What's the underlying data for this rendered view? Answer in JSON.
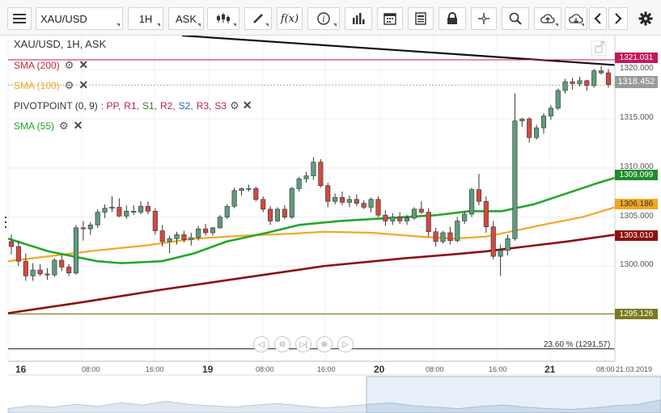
{
  "toolbar": {
    "symbol": "XAU/USD",
    "interval": "1H",
    "price_type": "ASK"
  },
  "legend": {
    "symbol_line": "XAU/USD, 1H, ASK",
    "sma200": "SMA (200)",
    "sma100": "SMA (100)",
    "pivot_label": "PIVOTPOINT (0, 9)",
    "pivot_items": [
      ": PP,",
      "R1,",
      "S1,",
      "R2,",
      "S2,",
      "R3,",
      "S3"
    ],
    "sma55": "SMA (55)"
  },
  "colors": {
    "up": "#5d9c7d",
    "down": "#d2493f",
    "sma200": "#8b1010",
    "sma100": "#f5a623",
    "sma55": "#22a72a",
    "pivot_line": "#7a7a1e",
    "pink": "#c2185b",
    "badge_green": "#1e8c2a",
    "badge_orange": "#f5a623",
    "badge_darkred": "#8b1010",
    "badge_olive": "#7a7a1e",
    "badge_price": "#9a9a9a"
  },
  "badges": {
    "pink": "1321.031",
    "last": "1318.452",
    "sma55": "1309.099",
    "sma100": "1306.186",
    "sma200": "1303.010",
    "pivot": "1295.126"
  },
  "fib_label": "23.60 % (1291.57)",
  "chart_data": {
    "type": "candlestick",
    "ylim": [
      1290.3,
      1323.5
    ],
    "yticks": [
      "1320.000",
      "1315.000",
      "1310.000",
      "1305.000",
      "1300.000"
    ],
    "ytick_values": [
      1320,
      1315,
      1310,
      1305,
      1300
    ],
    "xticks": [
      "16",
      "08:00",
      "16:00",
      "19",
      "08:00",
      "16:00",
      "20",
      "08:00",
      "16:00",
      "21",
      "08:00"
    ],
    "xtick_bold": [
      true,
      false,
      false,
      true,
      false,
      false,
      true,
      false,
      false,
      true,
      false
    ],
    "date_label": "21.03.2019",
    "candles": [
      [
        1302.5,
        1303.2,
        1301.2,
        1302.0
      ],
      [
        1302.0,
        1302.6,
        1300.0,
        1300.5
      ],
      [
        1300.5,
        1301.3,
        1298.5,
        1299.0
      ],
      [
        1299.0,
        1300.3,
        1298.5,
        1299.6
      ],
      [
        1299.6,
        1300.2,
        1299.0,
        1299.2
      ],
      [
        1299.2,
        1299.8,
        1298.6,
        1299.1
      ],
      [
        1299.1,
        1300.8,
        1298.9,
        1300.6
      ],
      [
        1300.6,
        1301.1,
        1299.5,
        1299.9
      ],
      [
        1299.9,
        1300.2,
        1299.0,
        1299.3
      ],
      [
        1299.3,
        1304.2,
        1299.1,
        1303.9
      ],
      [
        1303.9,
        1304.6,
        1302.6,
        1303.8
      ],
      [
        1303.8,
        1304.5,
        1303.2,
        1304.2
      ],
      [
        1304.2,
        1305.8,
        1303.9,
        1305.5
      ],
      [
        1305.5,
        1306.3,
        1304.9,
        1305.9
      ],
      [
        1305.9,
        1307.1,
        1305.5,
        1306.0
      ],
      [
        1306.0,
        1306.9,
        1305.0,
        1305.1
      ],
      [
        1305.1,
        1306.2,
        1304.8,
        1305.6
      ],
      [
        1305.6,
        1306.2,
        1305.2,
        1305.5
      ],
      [
        1305.5,
        1306.6,
        1305.3,
        1306.1
      ],
      [
        1306.1,
        1306.6,
        1305.3,
        1305.6
      ],
      [
        1305.6,
        1305.9,
        1303.2,
        1303.6
      ],
      [
        1303.6,
        1304.2,
        1302.0,
        1302.5
      ],
      [
        1302.5,
        1303.1,
        1301.3,
        1302.8
      ],
      [
        1302.8,
        1303.5,
        1302.2,
        1303.2
      ],
      [
        1303.2,
        1303.6,
        1302.4,
        1302.7
      ],
      [
        1302.7,
        1303.4,
        1302.1,
        1302.9
      ],
      [
        1302.9,
        1304.1,
        1302.6,
        1303.8
      ],
      [
        1303.8,
        1304.3,
        1303.1,
        1303.4
      ],
      [
        1303.4,
        1304.0,
        1303.1,
        1303.9
      ],
      [
        1303.9,
        1305.2,
        1303.8,
        1305.0
      ],
      [
        1305.0,
        1306.3,
        1304.8,
        1306.1
      ],
      [
        1306.1,
        1308.0,
        1305.9,
        1307.7
      ],
      [
        1307.7,
        1308.0,
        1307.2,
        1307.9
      ],
      [
        1307.9,
        1308.3,
        1307.6,
        1307.9
      ],
      [
        1307.9,
        1308.1,
        1306.6,
        1306.8
      ],
      [
        1306.8,
        1307.1,
        1305.5,
        1305.8
      ],
      [
        1305.8,
        1306.1,
        1304.2,
        1304.6
      ],
      [
        1304.6,
        1306.0,
        1304.5,
        1305.8
      ],
      [
        1305.8,
        1306.2,
        1304.8,
        1305.0
      ],
      [
        1305.0,
        1308.1,
        1304.8,
        1307.9
      ],
      [
        1307.9,
        1309.1,
        1307.6,
        1308.9
      ],
      [
        1308.9,
        1309.6,
        1308.5,
        1309.2
      ],
      [
        1309.2,
        1311.1,
        1308.8,
        1310.6
      ],
      [
        1310.6,
        1310.9,
        1308.0,
        1308.2
      ],
      [
        1308.2,
        1308.5,
        1306.0,
        1306.6
      ],
      [
        1306.6,
        1307.4,
        1306.3,
        1307.0
      ],
      [
        1307.0,
        1307.6,
        1306.2,
        1306.5
      ],
      [
        1306.5,
        1307.2,
        1306.0,
        1306.8
      ],
      [
        1306.8,
        1307.3,
        1306.1,
        1306.4
      ],
      [
        1306.4,
        1306.7,
        1305.8,
        1306.0
      ],
      [
        1306.0,
        1307.0,
        1305.5,
        1306.8
      ],
      [
        1306.8,
        1307.1,
        1305.0,
        1305.2
      ],
      [
        1305.2,
        1305.7,
        1304.1,
        1304.6
      ],
      [
        1304.6,
        1305.4,
        1304.2,
        1305.0
      ],
      [
        1305.0,
        1305.5,
        1304.3,
        1304.6
      ],
      [
        1304.6,
        1305.2,
        1304.2,
        1304.9
      ],
      [
        1304.9,
        1306.0,
        1304.7,
        1305.8
      ],
      [
        1305.8,
        1306.6,
        1305.3,
        1305.5
      ],
      [
        1305.5,
        1305.9,
        1303.0,
        1303.5
      ],
      [
        1303.5,
        1303.9,
        1302.0,
        1302.5
      ],
      [
        1302.5,
        1303.6,
        1302.3,
        1303.4
      ],
      [
        1303.4,
        1304.0,
        1302.2,
        1302.6
      ],
      [
        1302.6,
        1305.0,
        1302.4,
        1304.6
      ],
      [
        1304.6,
        1305.6,
        1304.3,
        1305.3
      ],
      [
        1305.3,
        1308.0,
        1305.0,
        1307.8
      ],
      [
        1307.8,
        1309.4,
        1306.2,
        1306.6
      ],
      [
        1306.6,
        1307.1,
        1303.4,
        1304.0
      ],
      [
        1304.0,
        1304.6,
        1300.7,
        1301.0
      ],
      [
        1301.0,
        1302.2,
        1299.0,
        1301.6
      ],
      [
        1301.6,
        1303.2,
        1301.1,
        1302.8
      ],
      [
        1302.8,
        1317.6,
        1302.6,
        1314.8
      ],
      [
        1314.8,
        1315.1,
        1314.2,
        1315.0
      ],
      [
        1315.0,
        1315.2,
        1312.6,
        1313.1
      ],
      [
        1313.1,
        1314.4,
        1312.9,
        1314.1
      ],
      [
        1314.1,
        1315.6,
        1313.5,
        1315.3
      ],
      [
        1315.3,
        1316.4,
        1314.9,
        1316.1
      ],
      [
        1316.1,
        1318.1,
        1315.9,
        1317.9
      ],
      [
        1317.9,
        1319.1,
        1317.6,
        1318.8
      ],
      [
        1318.8,
        1319.2,
        1318.0,
        1318.6
      ],
      [
        1318.6,
        1319.3,
        1318.3,
        1318.9
      ],
      [
        1318.9,
        1319.0,
        1317.9,
        1318.4
      ],
      [
        1318.4,
        1320.1,
        1318.2,
        1319.9
      ],
      [
        1319.9,
        1320.4,
        1319.5,
        1319.7
      ],
      [
        1319.7,
        1320.1,
        1318.2,
        1318.5
      ]
    ]
  },
  "navbar": [
    "◁",
    "⊖",
    "▷|",
    "⊕",
    "▷"
  ]
}
